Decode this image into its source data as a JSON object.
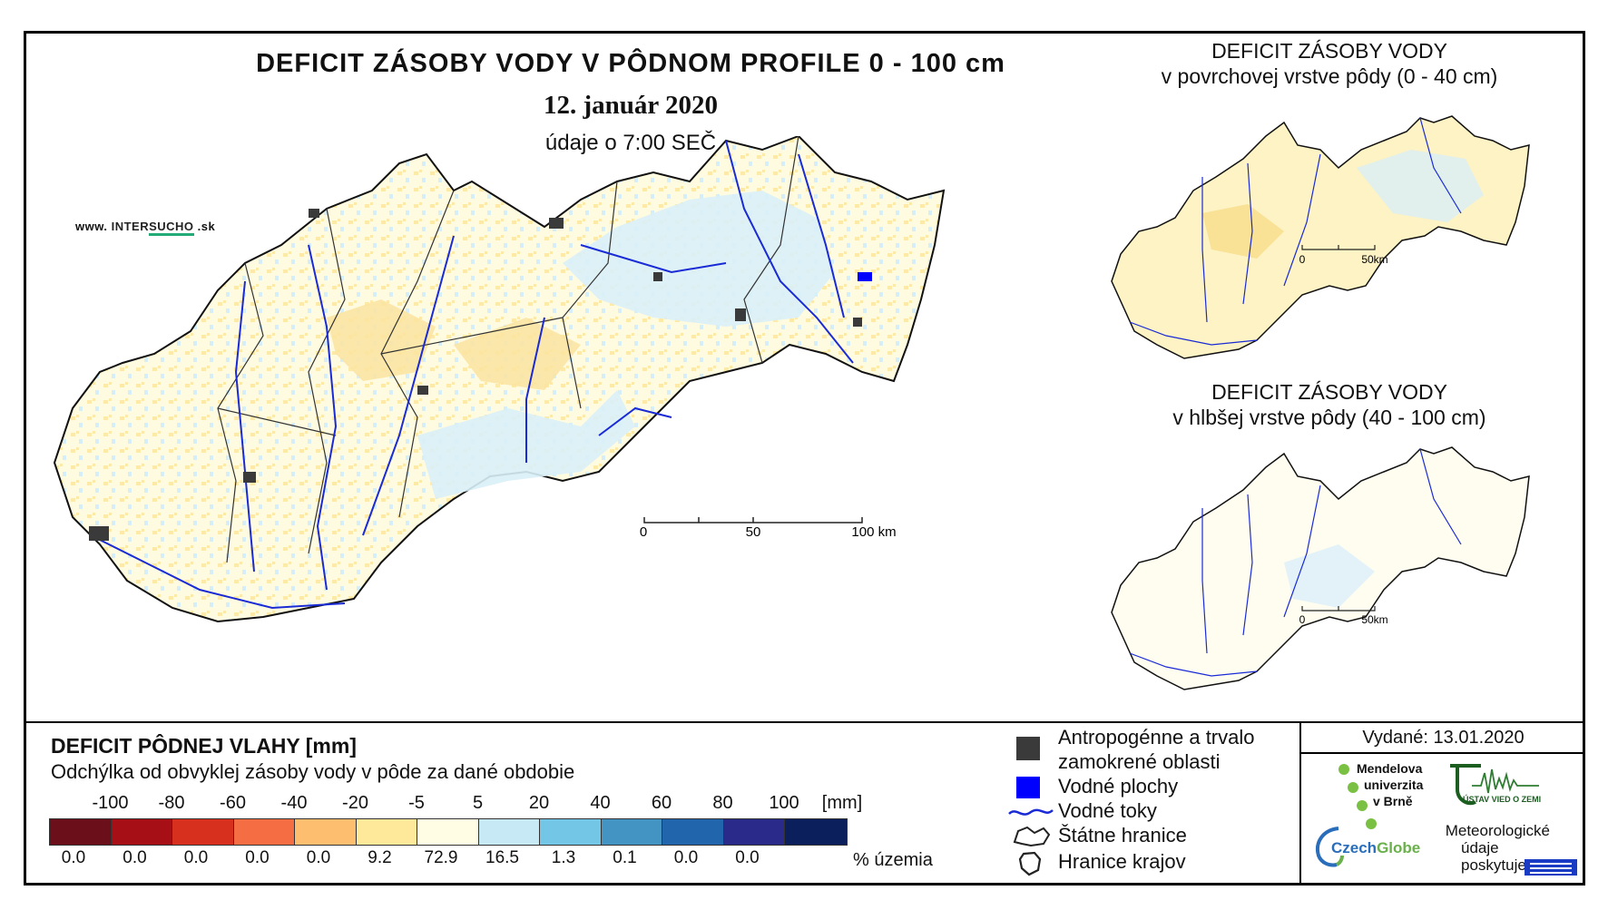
{
  "main": {
    "title": "DEFICIT ZÁSOBY VODY V PÔDNOM PROFILE 0 - 100 cm",
    "date": "12. január 2020",
    "time": "údaje o 7:00 SEČ",
    "brand_prefix": "www.",
    "brand_name": "INTER",
    "brand_name2": "SUCHO",
    "brand_suffix": ".sk",
    "scale": {
      "labels": [
        "0",
        "50",
        "100 km"
      ]
    }
  },
  "inset_top": {
    "title_line1": "DEFICIT ZÁSOBY VODY",
    "title_line2": "v povrchovej vrstve pôdy (0 - 40 cm)",
    "scale": {
      "labels": [
        "0",
        "50km"
      ]
    }
  },
  "inset_bottom": {
    "title_line1": "DEFICIT ZÁSOBY VODY",
    "title_line2": "v hlbšej vrstve pôdy (40 - 100 cm)",
    "scale": {
      "labels": [
        "0",
        "50km"
      ]
    }
  },
  "legend": {
    "title": "DEFICIT PÔDNEJ VLAHY [mm]",
    "subtitle": "Odchýlka od obvyklej zásoby vody v pôde za dané obdobie",
    "ticks": [
      "-100",
      "-80",
      "-60",
      "-40",
      "-20",
      "-5",
      "5",
      "20",
      "40",
      "60",
      "80",
      "100"
    ],
    "unit": "[mm]",
    "colors": [
      "#6b0f1a",
      "#a50f15",
      "#d7301f",
      "#f46d43",
      "#fdbf6f",
      "#fee89a",
      "#fffde4",
      "#c6e9f5",
      "#74c6e6",
      "#4393c3",
      "#2166ac",
      "#2a2a8a",
      "#0a1f5c"
    ],
    "percentages": [
      "0.0",
      "0.0",
      "0.0",
      "0.0",
      "0.0",
      "9.2",
      "72.9",
      "16.5",
      "1.3",
      "0.1",
      "0.0",
      "0.0"
    ],
    "percent_label": "% územia"
  },
  "symbols": {
    "anthropogenic_line1": "Antropogénne a trvalo",
    "anthropogenic_line2": "zamokrené oblasti",
    "water_bodies": "Vodné plochy",
    "rivers": "Vodné toky",
    "state_border": "Štátne hranice",
    "region_border": "Hranice krajov",
    "colors": {
      "anthropogenic": "#3a3a3a",
      "water": "#0000ff",
      "river": "#1a2bd6"
    }
  },
  "issued": {
    "label": "Vydané:",
    "date": "13.01.2020"
  },
  "logos": {
    "mendel_line1": "Mendelova",
    "mendel_line2": "univerzita",
    "mendel_line3": "v Brně",
    "uvoz": "ÚSTAV VIED O ZEMI",
    "czech": "Czech",
    "czech2": "Globe",
    "meteo_line1": "Meteorologické",
    "meteo_line2": "údaje",
    "meteo_line3": "poskytuje:"
  }
}
